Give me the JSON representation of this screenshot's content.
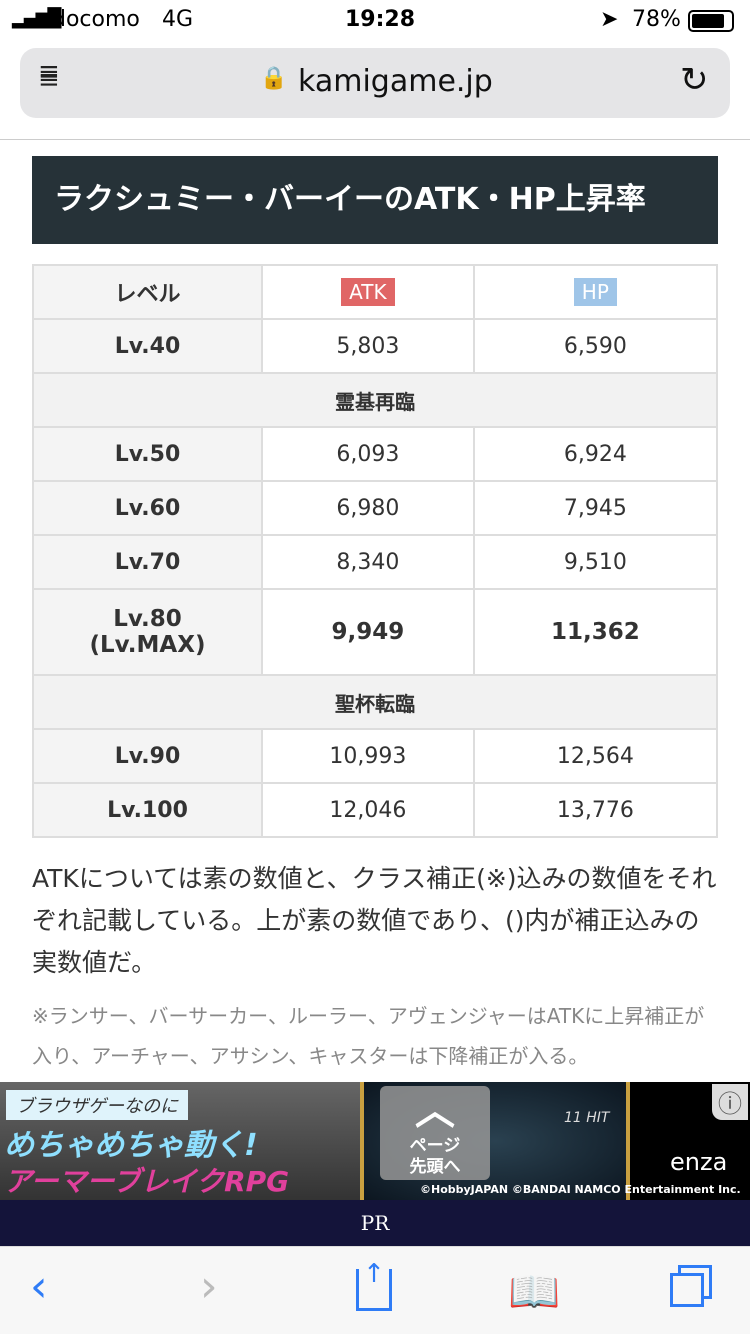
{
  "status": {
    "carrier": "docomo",
    "network": "4G",
    "time": "19:28",
    "battery": "78%"
  },
  "browser": {
    "url": "kamigame.jp"
  },
  "title": "ラクシュミー・バーイーのATK・HP上昇率",
  "table": {
    "headers": [
      "レベル",
      "ATK",
      "HP"
    ],
    "header_colors": {
      "atk": "#e06666",
      "hp": "#9fc5e8"
    },
    "rows": [
      {
        "type": "data",
        "level": "Lv.40",
        "atk": "5,803",
        "hp": "6,590"
      },
      {
        "type": "section",
        "label": "霊基再臨"
      },
      {
        "type": "data",
        "level": "Lv.50",
        "atk": "6,093",
        "hp": "6,924"
      },
      {
        "type": "data",
        "level": "Lv.60",
        "atk": "6,980",
        "hp": "7,945"
      },
      {
        "type": "data",
        "level": "Lv.70",
        "atk": "8,340",
        "hp": "9,510"
      },
      {
        "type": "data",
        "level": "Lv.80",
        "level2": "(Lv.MAX)",
        "atk": "9,949",
        "hp": "11,362",
        "bold": true
      },
      {
        "type": "section",
        "label": "聖杯転臨"
      },
      {
        "type": "data",
        "level": "Lv.90",
        "atk": "10,993",
        "hp": "12,564"
      },
      {
        "type": "data",
        "level": "Lv.100",
        "atk": "12,046",
        "hp": "13,776"
      }
    ]
  },
  "paragraph": "ATKについては素の数値と、クラス補正(※)込みの数値をそれぞれ記載している。上が素の数値であり、()内が補正込みの実数値だ。",
  "note": "※ランサー、バーサーカー、ルーラー、アヴェンジャーはATKに上昇補正が入り、アーチャー、アサシン、キャスターは下降補正が入る。",
  "page_top": {
    "line1": "ページ",
    "line2": "先頭へ"
  },
  "ad": {
    "line1": "ブラウザゲーなのに",
    "line2": "めちゃめちゃ動く!",
    "line3": "アーマーブレイクRPG",
    "hit": "11 HIT",
    "brand": "enza",
    "copyright": "©HobbyJAPAN ©BANDAI NAMCO Entertainment Inc."
  },
  "pr_label": "PR"
}
